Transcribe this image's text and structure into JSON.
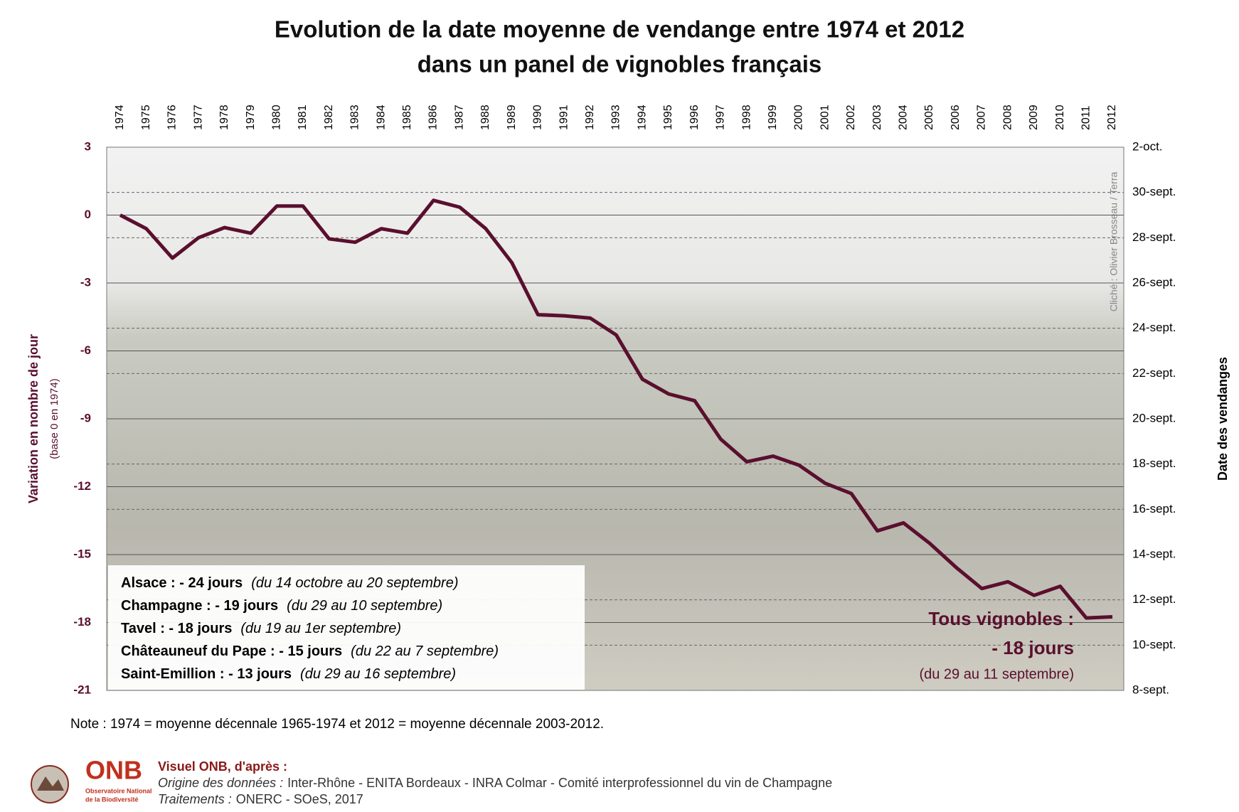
{
  "chart_data": {
    "type": "line",
    "title": [
      "Evolution de la date moyenne de vendange entre 1974 et 2012",
      "dans un panel de vignobles français"
    ],
    "y_label": "Variation en nombre de jour",
    "y_sublabel": "(base 0 en 1974)",
    "y2_label": "Date des vendanges",
    "photo_credit": "Cliché : Olivier Brosseau / Terra",
    "categories": [
      "1974",
      "1975",
      "1976",
      "1977",
      "1978",
      "1979",
      "1980",
      "1981",
      "1982",
      "1983",
      "1984",
      "1985",
      "1986",
      "1987",
      "1988",
      "1989",
      "1990",
      "1991",
      "1992",
      "1993",
      "1994",
      "1995",
      "1996",
      "1997",
      "1998",
      "1999",
      "2000",
      "2001",
      "2002",
      "2003",
      "2004",
      "2005",
      "2006",
      "2007",
      "2008",
      "2009",
      "2010",
      "2011",
      "2012"
    ],
    "series": [
      {
        "color": "#5a0f2e",
        "values": [
          0,
          -0.6,
          -1.9,
          -1.0,
          -0.55,
          -0.8,
          0.4,
          0.4,
          -1.05,
          -1.2,
          -0.6,
          -0.8,
          0.65,
          0.35,
          -0.6,
          -2.1,
          -4.4,
          -4.45,
          -4.55,
          -5.3,
          -7.25,
          -7.9,
          -8.2,
          -9.9,
          -10.9,
          -10.65,
          -11.05,
          -11.85,
          -12.3,
          -13.95,
          -13.6,
          -14.5,
          -15.55,
          -16.5,
          -16.2,
          -16.8,
          -16.4,
          -17.8,
          -17.75
        ]
      }
    ],
    "ylim": [
      -21,
      3
    ],
    "yticks": [
      3,
      0,
      -3,
      -6,
      -9,
      -12,
      -15,
      -18,
      -21
    ],
    "y2lim": [
      -21,
      3
    ],
    "y2ticks": [
      {
        "value": 3,
        "label": "2-oct."
      },
      {
        "value": 1,
        "label": "30-sept."
      },
      {
        "value": -1,
        "label": "28-sept."
      },
      {
        "value": -3,
        "label": "26-sept."
      },
      {
        "value": -5,
        "label": "24-sept."
      },
      {
        "value": -7,
        "label": "22-sept."
      },
      {
        "value": -9,
        "label": "20-sept."
      },
      {
        "value": -11,
        "label": "18-sept."
      },
      {
        "value": -13,
        "label": "16-sept."
      },
      {
        "value": -15,
        "label": "14-sept."
      },
      {
        "value": -17,
        "label": "12-sept."
      },
      {
        "value": -19,
        "label": "10-sept."
      },
      {
        "value": -21,
        "label": "8-sept."
      }
    ],
    "grid": true,
    "legend_box": [
      {
        "label": "Alsace : - 24 jours",
        "period": "(du 14 octobre au 20 septembre)"
      },
      {
        "label": "Champagne : - 19 jours",
        "period": "(du 29 au 10 septembre)"
      },
      {
        "label": "Tavel : - 18 jours",
        "period": "(du 19 au 1er septembre)"
      },
      {
        "label": "Châteauneuf du Pape : - 15 jours",
        "period": "(du 22 au 7 septembre)"
      },
      {
        "label": "Saint-Emillion : - 13 jours",
        "period": "(du 29 au 16 septembre)"
      }
    ],
    "annotation": {
      "line1": "Tous vignobles :",
      "line2": "- 18 jours",
      "line3": "(du 29 au 11 septembre)"
    }
  },
  "note": "Note : 1974 = moyenne décennale 1965-1974 et 2012 = moyenne décennale 2003-2012.",
  "footer": {
    "logo": "ONB",
    "logo_sub": [
      "Observatoire National",
      "de la Biodiversité"
    ],
    "heading": "Visuel ONB, d'après :",
    "origin_label": "Origine des données :",
    "origin": "Inter-Rhône - ENITA Bordeaux - INRA Colmar - Comité interprofessionnel du vin de Champagne",
    "treat_label": "Traitements :",
    "treat": "ONERC - SOeS, 2017"
  }
}
